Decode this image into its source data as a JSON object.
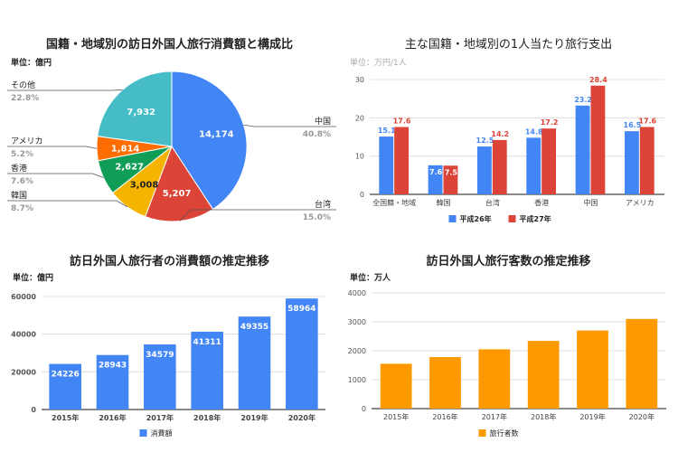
{
  "chart_data": [
    {
      "type": "pie",
      "title": "国籍・地域別の訪日外国人旅行消費額と構成比",
      "unit": "単位：億円",
      "slices": [
        {
          "label": "中国",
          "value": 14174,
          "value_label": "14,174",
          "percent": "40.8%",
          "color": "#4285F4"
        },
        {
          "label": "台湾",
          "value": 5207,
          "value_label": "5,207",
          "percent": "15.0%",
          "color": "#DB4437"
        },
        {
          "label": "韓国",
          "value": 3008,
          "value_label": "3,008",
          "percent": "8.7%",
          "color": "#F4B400"
        },
        {
          "label": "香港",
          "value": 2627,
          "value_label": "2,627",
          "percent": "7.6%",
          "color": "#0F9D58"
        },
        {
          "label": "アメリカ",
          "value": 1814,
          "value_label": "1,814",
          "percent": "5.2%",
          "color": "#FF6D00"
        },
        {
          "label": "その他",
          "value": 7932,
          "value_label": "7,932",
          "percent": "22.8%",
          "color": "#46BDC6"
        }
      ]
    },
    {
      "type": "bar",
      "title": "主な国籍・地域別の1人当たり旅行支出",
      "unit": "単位：万円/1人",
      "categories": [
        "全国籍・地域",
        "韓国",
        "台湾",
        "香港",
        "中国",
        "アメリカ"
      ],
      "series": [
        {
          "name": "平成26年",
          "values": [
            15.1,
            7.6,
            12.5,
            14.8,
            23.2,
            16.5
          ],
          "color": "#4285F4"
        },
        {
          "name": "平成27年",
          "values": [
            17.6,
            7.5,
            14.2,
            17.2,
            28.4,
            17.6
          ],
          "color": "#DB4437"
        }
      ],
      "yticks": [
        0,
        10,
        20,
        30
      ],
      "ylim": [
        0,
        30
      ],
      "legend": "bottom"
    },
    {
      "type": "bar",
      "title": "訪日外国人旅行者の消費額の推定推移",
      "unit": "単位：億円",
      "categories": [
        "2015年",
        "2016年",
        "2017年",
        "2018年",
        "2019年",
        "2020年"
      ],
      "series": [
        {
          "name": "消費額",
          "values": [
            24226,
            28943,
            34579,
            41311,
            49355,
            58964
          ],
          "color": "#4285F4"
        }
      ],
      "yticks": [
        0,
        20000,
        40000,
        60000
      ],
      "ylim": [
        0,
        60000
      ],
      "legend": "bottom"
    },
    {
      "type": "bar",
      "title": "訪日外国人旅行客数の推定推移",
      "unit": "単位：万人",
      "categories": [
        "2015年",
        "2016年",
        "2017年",
        "2018年",
        "2019年",
        "2020年"
      ],
      "series": [
        {
          "name": "旅行者数",
          "values": [
            1550,
            1780,
            2050,
            2340,
            2700,
            3100
          ],
          "color": "#FF9900"
        }
      ],
      "yticks": [
        0,
        1000,
        2000,
        3000,
        4000
      ],
      "ylim": [
        0,
        4000
      ],
      "legend": "bottom"
    }
  ]
}
